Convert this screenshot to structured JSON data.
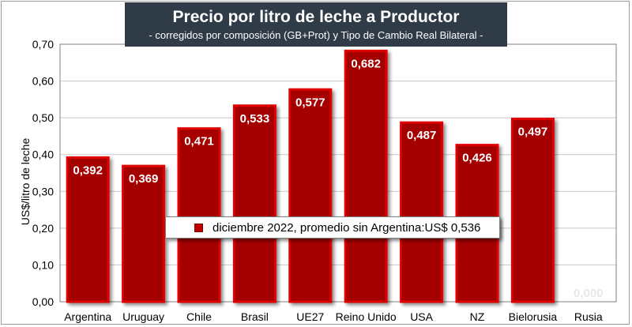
{
  "title": "Precio por litro de leche a Productor",
  "subtitle": "-  corregidos por composición (GB+Prot) y Tipo de Cambio Real Bilateral -",
  "colors": {
    "bar_fill": "#a50000",
    "bar_border": "#e00000",
    "title_bg": "#2f3b47"
  },
  "legend_text": "diciembre 2022, promedio sin Argentina:US$ 0,536",
  "chart_data": {
    "type": "bar",
    "title": "Precio por litro de leche a Productor",
    "ylabel": "US$/litro de leche",
    "xlabel": "",
    "ylim": [
      0,
      0.7
    ],
    "y_ticks": [
      "0,00",
      "0,10",
      "0,20",
      "0,30",
      "0,40",
      "0,50",
      "0,60",
      "0,70"
    ],
    "grid": true,
    "legend_position": "center",
    "categories": [
      "Argentina",
      "Uruguay",
      "Chile",
      "Brasil",
      "UE27",
      "Reino Unido",
      "USA",
      "NZ",
      "Bielorusia",
      "Rusia"
    ],
    "values": [
      0.392,
      0.369,
      0.471,
      0.533,
      0.577,
      0.682,
      0.487,
      0.426,
      0.497,
      0
    ],
    "value_labels": [
      "0,392",
      "0,369",
      "0,471",
      "0,533",
      "0,577",
      "0,682",
      "0,487",
      "0,426",
      "0,497",
      "0,000"
    ]
  }
}
